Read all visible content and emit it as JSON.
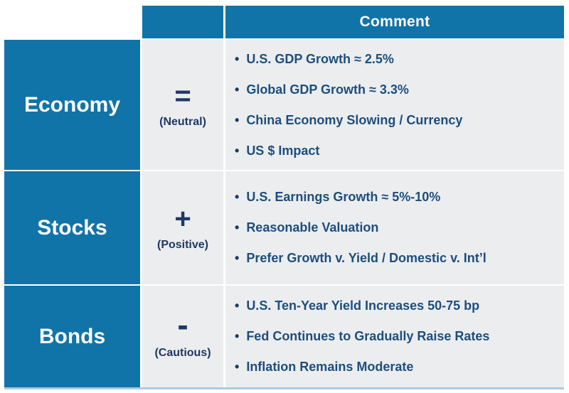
{
  "table": {
    "header": {
      "comment_label": "Comment"
    },
    "bullet_char": "•",
    "rows": [
      {
        "label": "Economy",
        "symbol": "=",
        "stance": "(Neutral)",
        "bullets": [
          "U.S. GDP Growth ≈ 2.5%",
          "Global GDP Growth ≈ 3.3%",
          "China Economy Slowing / Currency",
          "US $ Impact"
        ]
      },
      {
        "label": "Stocks",
        "symbol": "+",
        "stance": "(Positive)",
        "bullets": [
          "U.S. Earnings Growth ≈ 5%-10%",
          "Reasonable Valuation",
          "Prefer Growth v. Yield / Domestic v. Int’l"
        ]
      },
      {
        "label": "Bonds",
        "symbol": "-",
        "stance": "(Cautious)",
        "bullets": [
          "U.S. Ten-Year Yield Increases 50-75 bp",
          "Fed Continues to Gradually Raise Rates",
          "Inflation Remains Moderate"
        ]
      }
    ]
  },
  "colors": {
    "accent_blue": "#1174A8",
    "cell_gray": "#ECEDEF",
    "text_navy": "#1C4E7E",
    "symbol_navy": "#1F3864",
    "header_text": "#FFFFFF",
    "bottom_rule": "#A9CBE1"
  }
}
